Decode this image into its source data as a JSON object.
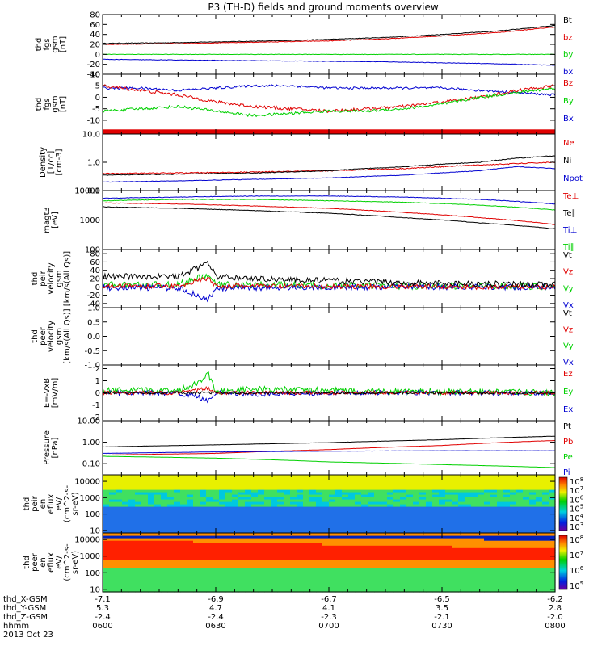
{
  "title": "P3 (TH-D) fields and ground moments overview",
  "colors": {
    "black": "#000000",
    "red": "#e00000",
    "green": "#00d000",
    "blue": "#0000d0",
    "grey": "#888888"
  },
  "chart_data": [
    {
      "type": "line",
      "id": "p1",
      "ylabel": [
        "thd",
        "fgs",
        "gsm",
        "[nT]"
      ],
      "ylim": [
        -40,
        80
      ],
      "yticks": [
        {
          "v": 80,
          "t": "80"
        },
        {
          "v": 60,
          "t": "60"
        },
        {
          "v": 40,
          "t": "40"
        },
        {
          "v": 20,
          "t": "20"
        },
        {
          "v": 0,
          "t": "0"
        },
        {
          "v": -20,
          "t": "-20"
        },
        {
          "v": -40,
          "t": "-40"
        }
      ],
      "legend": [
        {
          "t": "Bt",
          "c": "black"
        },
        {
          "t": "bz",
          "c": "red"
        },
        {
          "t": "by",
          "c": "green"
        },
        {
          "t": "bx",
          "c": "blue"
        }
      ],
      "series": [
        {
          "c": "black",
          "x": [
            0,
            15,
            30,
            45,
            60,
            75,
            90,
            105,
            120
          ],
          "y": [
            22,
            23,
            25,
            27,
            30,
            34,
            40,
            47,
            58
          ],
          "noise": 0.6
        },
        {
          "c": "red",
          "x": [
            0,
            15,
            30,
            45,
            60,
            75,
            90,
            105,
            120
          ],
          "y": [
            20,
            21,
            23,
            25,
            27,
            31,
            37,
            44,
            55
          ],
          "noise": 0.6
        },
        {
          "c": "green",
          "x": [
            0,
            30,
            60,
            90,
            120
          ],
          "y": [
            0,
            0,
            0,
            0,
            0
          ],
          "noise": 0.5
        },
        {
          "c": "blue",
          "x": [
            0,
            15,
            30,
            45,
            60,
            75,
            90,
            105,
            120
          ],
          "y": [
            -10,
            -11,
            -12,
            -13,
            -14,
            -15,
            -17,
            -19,
            -22
          ],
          "noise": 0.5
        }
      ]
    },
    {
      "type": "line",
      "id": "p2",
      "ylabel": [
        "thd",
        "fgs",
        "gsm",
        "[nT]"
      ],
      "ylim": [
        -16,
        10
      ],
      "yticks": [
        {
          "v": 10,
          "t": "10"
        },
        {
          "v": 5,
          "t": "5"
        },
        {
          "v": 0,
          "t": "0"
        },
        {
          "v": -5,
          "t": "-5"
        },
        {
          "v": -10,
          "t": "-10"
        }
      ],
      "legend": [
        {
          "t": "Bz",
          "c": "red"
        },
        {
          "t": "By",
          "c": "green"
        },
        {
          "t": "Bx",
          "c": "blue"
        }
      ],
      "band": {
        "y": [
          -16,
          -14
        ],
        "c": "red"
      },
      "series": [
        {
          "c": "blue",
          "x": [
            0,
            10,
            20,
            30,
            40,
            50,
            60,
            70,
            80,
            90,
            100,
            110,
            120
          ],
          "y": [
            4,
            4,
            3,
            4,
            5,
            5,
            4,
            4,
            4,
            4,
            3,
            2,
            1
          ],
          "noise": 0.5
        },
        {
          "c": "red",
          "x": [
            0,
            10,
            20,
            30,
            40,
            50,
            60,
            70,
            80,
            90,
            100,
            110,
            120
          ],
          "y": [
            5,
            3,
            1,
            -2,
            -4,
            -5,
            -6,
            -5,
            -4,
            -2,
            0,
            3,
            5
          ],
          "noise": 0.7
        },
        {
          "c": "green",
          "x": [
            0,
            10,
            20,
            30,
            40,
            50,
            60,
            70,
            80,
            90,
            100,
            110,
            120
          ],
          "y": [
            -6,
            -5,
            -4,
            -6,
            -8,
            -7,
            -6,
            -6,
            -5,
            -3,
            0,
            2,
            4
          ],
          "noise": 0.6
        }
      ]
    },
    {
      "type": "line",
      "id": "p3",
      "ylabel": [
        "Density",
        "[1/cc]",
        "[cm-3]"
      ],
      "ylog": true,
      "ylim": [
        0.1,
        10
      ],
      "yticks": [
        {
          "v": 10,
          "t": "10.0"
        },
        {
          "v": 1,
          "t": "1.0"
        },
        {
          "v": 0.1,
          "t": "0.1"
        }
      ],
      "legend": [
        {
          "t": "Ne",
          "c": "red"
        },
        {
          "t": "Ni",
          "c": "black"
        },
        {
          "t": "Npot",
          "c": "blue"
        }
      ],
      "series": [
        {
          "c": "red",
          "x": [
            0,
            20,
            40,
            60,
            80,
            100,
            120
          ],
          "y": [
            0.4,
            0.42,
            0.45,
            0.5,
            0.6,
            0.8,
            1.0
          ],
          "noise": 0.04
        },
        {
          "c": "black",
          "x": [
            0,
            20,
            40,
            60,
            80,
            100,
            110,
            120
          ],
          "y": [
            0.35,
            0.38,
            0.42,
            0.5,
            0.7,
            1.0,
            1.4,
            1.7
          ],
          "noise": 0.03
        },
        {
          "c": "blue",
          "x": [
            0,
            20,
            40,
            60,
            80,
            100,
            110,
            120
          ],
          "y": [
            0.2,
            0.22,
            0.25,
            0.28,
            0.35,
            0.5,
            0.7,
            0.6
          ],
          "noise": 0.02
        }
      ]
    },
    {
      "type": "line",
      "id": "p4",
      "ylabel": [
        "magt3",
        "[eV]"
      ],
      "ylog": true,
      "ylim": [
        100,
        10000
      ],
      "yticks": [
        {
          "v": 10000,
          "t": "10000"
        },
        {
          "v": 1000,
          "t": "1000"
        },
        {
          "v": 100,
          "t": "100"
        }
      ],
      "legend": [
        {
          "t": "Te⊥",
          "c": "red"
        },
        {
          "t": "Te∥",
          "c": "black"
        },
        {
          "t": "Ti⊥",
          "c": "blue"
        },
        {
          "t": "Ti∥",
          "c": "green"
        }
      ],
      "series": [
        {
          "c": "blue",
          "x": [
            0,
            20,
            40,
            60,
            80,
            100,
            120
          ],
          "y": [
            5500,
            6000,
            6500,
            6500,
            6000,
            5000,
            3500
          ],
          "noise": 0.02
        },
        {
          "c": "green",
          "x": [
            0,
            20,
            40,
            60,
            80,
            100,
            120
          ],
          "y": [
            4500,
            5000,
            5000,
            4500,
            4000,
            3200,
            2200
          ],
          "noise": 0.02
        },
        {
          "c": "red",
          "x": [
            0,
            20,
            40,
            60,
            80,
            100,
            120
          ],
          "y": [
            3800,
            3500,
            3000,
            2500,
            1800,
            1200,
            700
          ],
          "noise": 0.02
        },
        {
          "c": "black",
          "x": [
            0,
            20,
            40,
            60,
            80,
            100,
            120
          ],
          "y": [
            2800,
            2500,
            2100,
            1700,
            1200,
            800,
            500
          ],
          "noise": 0.02
        }
      ]
    },
    {
      "type": "line",
      "id": "p5",
      "ylabel": [
        "thd",
        "peir",
        "velocity",
        "gsm",
        "[km/s(All Qs)]"
      ],
      "ylim": [
        -50,
        90
      ],
      "yticks": [
        {
          "v": 80,
          "t": "80"
        },
        {
          "v": 60,
          "t": "60"
        },
        {
          "v": 40,
          "t": "40"
        },
        {
          "v": 20,
          "t": "20"
        },
        {
          "v": 0,
          "t": "0"
        },
        {
          "v": -20,
          "t": "-20"
        },
        {
          "v": -40,
          "t": "-40"
        }
      ],
      "legend": [
        {
          "t": "Vt",
          "c": "black"
        },
        {
          "t": "Vz",
          "c": "red"
        },
        {
          "t": "Vy",
          "c": "green"
        },
        {
          "t": "Vx",
          "c": "blue"
        }
      ],
      "series": [
        {
          "c": "green",
          "x": [
            0,
            20,
            25,
            28,
            30,
            40,
            60,
            80,
            100,
            120
          ],
          "y": [
            5,
            5,
            20,
            30,
            5,
            5,
            3,
            2,
            2,
            1
          ],
          "noise": 8
        },
        {
          "c": "blue",
          "x": [
            0,
            20,
            25,
            28,
            30,
            40,
            60,
            80,
            100,
            120
          ],
          "y": [
            -2,
            -2,
            -20,
            -30,
            -5,
            -2,
            -1,
            0,
            0,
            0
          ],
          "noise": 7
        },
        {
          "c": "red",
          "x": [
            0,
            20,
            25,
            28,
            30,
            40,
            60,
            80,
            100,
            120
          ],
          "y": [
            2,
            2,
            15,
            20,
            2,
            2,
            1,
            1,
            0,
            0
          ],
          "noise": 6
        },
        {
          "c": "black",
          "x": [
            0,
            20,
            25,
            28,
            30,
            40,
            60,
            80,
            100,
            120
          ],
          "y": [
            25,
            25,
            45,
            60,
            25,
            20,
            15,
            10,
            8,
            6
          ],
          "noise": 7
        }
      ]
    },
    {
      "type": "line",
      "id": "p6",
      "ylabel": [
        "thd",
        "peer",
        "velocity",
        "gsm",
        "[km/s(All Qs)]"
      ],
      "ylim": [
        -1,
        1
      ],
      "yticks": [
        {
          "v": 1,
          "t": "1.0"
        },
        {
          "v": 0.5,
          "t": "0.5"
        },
        {
          "v": 0,
          "t": "0.0"
        },
        {
          "v": -0.5,
          "t": "-0.5"
        },
        {
          "v": -1,
          "t": "-1.0"
        }
      ],
      "legend": [
        {
          "t": "Vt",
          "c": "black"
        },
        {
          "t": "Vz",
          "c": "red"
        },
        {
          "t": "Vy",
          "c": "green"
        },
        {
          "t": "Vx",
          "c": "blue"
        }
      ],
      "series": []
    },
    {
      "type": "line",
      "id": "p7",
      "ylabel": [
        "E=-VxB",
        "[mV/m]"
      ],
      "ylim": [
        -2.3,
        2.3
      ],
      "yticks": [
        {
          "v": 2,
          "t": "2"
        },
        {
          "v": 1,
          "t": "1"
        },
        {
          "v": 0,
          "t": "0"
        },
        {
          "v": -1,
          "t": "-1"
        },
        {
          "v": -2,
          "t": "-2"
        }
      ],
      "legend": [
        {
          "t": "Ez",
          "c": "red"
        },
        {
          "t": "Ey",
          "c": "green"
        },
        {
          "t": "Ex",
          "c": "blue"
        }
      ],
      "series": [
        {
          "c": "blue",
          "x": [
            0,
            20,
            25,
            28,
            30,
            40,
            60,
            80,
            100,
            120
          ],
          "y": [
            0,
            0,
            -0.3,
            -0.6,
            0,
            -0.1,
            0,
            0,
            0,
            0
          ],
          "noise": 0.2
        },
        {
          "c": "green",
          "x": [
            0,
            20,
            25,
            28,
            30,
            40,
            60,
            80,
            100,
            120
          ],
          "y": [
            0.2,
            0.2,
            0.8,
            1.6,
            0.1,
            0.3,
            0.2,
            0.1,
            0.1,
            0
          ],
          "noise": 0.25
        },
        {
          "c": "red",
          "x": [
            0,
            20,
            25,
            28,
            30,
            40,
            60,
            80,
            100,
            120
          ],
          "y": [
            0,
            0,
            0.2,
            0.4,
            0,
            0,
            0,
            0,
            0,
            0
          ],
          "noise": 0.15
        },
        {
          "c": "black",
          "x": [
            0,
            30,
            60,
            90,
            120
          ],
          "y": [
            0,
            0,
            0,
            0,
            0
          ],
          "noise": 0.1
        }
      ]
    },
    {
      "type": "line",
      "id": "p8",
      "ylabel": [
        "Pressure",
        "[nPa]"
      ],
      "ylog": true,
      "ylim": [
        0.03,
        10
      ],
      "yticks": [
        {
          "v": 10,
          "t": "10.00"
        },
        {
          "v": 1,
          "t": "1.00"
        },
        {
          "v": 0.1,
          "t": "0.10"
        }
      ],
      "legend": [
        {
          "t": "Pt",
          "c": "black"
        },
        {
          "t": "Pb",
          "c": "red"
        },
        {
          "t": "Pe",
          "c": "green"
        },
        {
          "t": "Pi",
          "c": "blue"
        }
      ],
      "series": [
        {
          "c": "black",
          "x": [
            0,
            30,
            60,
            90,
            120
          ],
          "y": [
            0.6,
            0.75,
            0.95,
            1.3,
            1.9
          ],
          "noise": 0.01
        },
        {
          "c": "red",
          "x": [
            0,
            30,
            60,
            90,
            120
          ],
          "y": [
            0.25,
            0.3,
            0.45,
            0.7,
            1.2
          ],
          "noise": 0.01
        },
        {
          "c": "blue",
          "x": [
            0,
            30,
            60,
            90,
            120
          ],
          "y": [
            0.3,
            0.35,
            0.38,
            0.4,
            0.4
          ],
          "noise": 0.01
        },
        {
          "c": "green",
          "x": [
            0,
            30,
            60,
            90,
            120
          ],
          "y": [
            0.22,
            0.18,
            0.12,
            0.09,
            0.065
          ],
          "noise": 0.005
        }
      ]
    },
    {
      "type": "heatmap",
      "id": "p9",
      "ylabel": [
        "thd",
        "peir",
        "en",
        "eflux",
        "eV/",
        "(cm^2-s-",
        "sr-eV)"
      ],
      "ylog": true,
      "ylim": [
        7,
        25000
      ],
      "yticks": [
        {
          "v": 10000,
          "t": "10000"
        },
        {
          "v": 1000,
          "t": "1000"
        },
        {
          "v": 100,
          "t": "100"
        },
        {
          "v": 10,
          "t": "10"
        }
      ],
      "colorbar": {
        "exp": [
          "8",
          "7",
          "6",
          "5",
          "4",
          "3"
        ]
      }
    },
    {
      "type": "heatmap",
      "id": "p10",
      "ylabel": [
        "thd",
        "peer",
        "en",
        "eflux",
        "eV/",
        "(cm^2-s-",
        "sr-eV)"
      ],
      "ylog": true,
      "ylim": [
        7,
        25000
      ],
      "yticks": [
        {
          "v": 10000,
          "t": "10000"
        },
        {
          "v": 1000,
          "t": "1000"
        },
        {
          "v": 100,
          "t": "100"
        },
        {
          "v": 10,
          "t": "10"
        }
      ],
      "colorbar": {
        "exp": [
          "8",
          "7",
          "6",
          "5"
        ]
      }
    }
  ],
  "footer": {
    "labels": [
      "thd_X-GSM",
      "thd_Y-GSM",
      "thd_Z-GSM",
      "hhmm",
      "2013 Oct 23"
    ],
    "columns": [
      {
        "x": 0,
        "vals": [
          "-7.1",
          "5.3",
          "-2.4",
          "0600"
        ]
      },
      {
        "x": 30,
        "vals": [
          "-6.9",
          "4.7",
          "-2.4",
          "0630"
        ]
      },
      {
        "x": 60,
        "vals": [
          "-6.7",
          "4.1",
          "-2.3",
          "0700"
        ]
      },
      {
        "x": 90,
        "vals": [
          "-6.5",
          "3.5",
          "-2.1",
          "0730"
        ]
      },
      {
        "x": 120,
        "vals": [
          "-6.2",
          "2.8",
          "-2.0",
          "0800"
        ]
      }
    ]
  }
}
